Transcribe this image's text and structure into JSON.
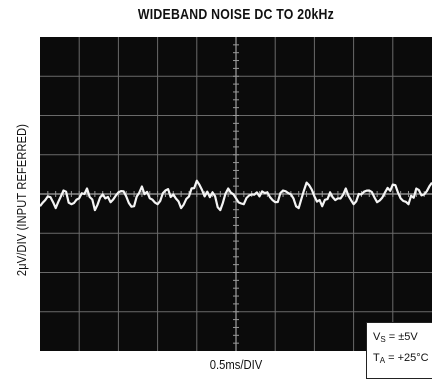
{
  "chart_data": {
    "type": "line",
    "title": "WIDEBAND NOISE DC TO 20kHz",
    "xlabel": "0.5ms/DIV",
    "ylabel": "2μV/DIV (INPUT REFERRED)",
    "x_divisions": 10,
    "y_divisions": 8,
    "grid": true,
    "conditions": [
      {
        "symbol": "V",
        "sub": "S",
        "value": " = ±5V"
      },
      {
        "symbol": "T",
        "sub": "A",
        "value": " = +25°C"
      }
    ],
    "conditions_placement": "bottom-right",
    "series": [
      {
        "x": [
          0.0,
          0.1,
          0.2,
          0.3,
          0.4,
          0.5,
          0.6,
          0.7,
          0.8,
          0.9,
          1.0,
          1.1,
          1.2,
          1.3,
          1.4,
          1.5,
          1.6,
          1.7,
          1.8,
          1.9,
          2.0,
          2.1,
          2.2,
          2.3,
          2.4,
          2.5,
          2.6,
          2.7,
          2.8,
          2.9,
          3.0,
          3.1,
          3.2,
          3.3,
          3.4,
          3.5,
          3.6,
          3.7,
          3.8,
          3.9,
          4.0,
          4.1,
          4.2,
          4.3,
          4.4,
          4.5,
          4.6,
          4.7,
          4.8,
          4.9,
          5.0
        ],
        "y": [
          -0.3,
          0.2,
          -0.4,
          0.5,
          -0.2,
          0.1,
          0.6,
          -0.5,
          0.3,
          -0.1,
          0.4,
          0.2,
          -0.3,
          0.7,
          0.1,
          -0.2,
          0.5,
          0.3,
          -0.4,
          0.2,
          1.0,
          0.2,
          0.4,
          -0.5,
          0.6,
          0.1,
          -0.2,
          0.3,
          0.2,
          0.4,
          -0.1,
          0.5,
          0.3,
          -0.4,
          0.9,
          0.2,
          -0.3,
          0.4,
          0.1,
          0.6,
          -0.2,
          0.3,
          0.5,
          -0.1,
          0.4,
          0.8,
          0.1,
          -0.2,
          0.6,
          0.3,
          0.9
        ]
      }
    ]
  }
}
